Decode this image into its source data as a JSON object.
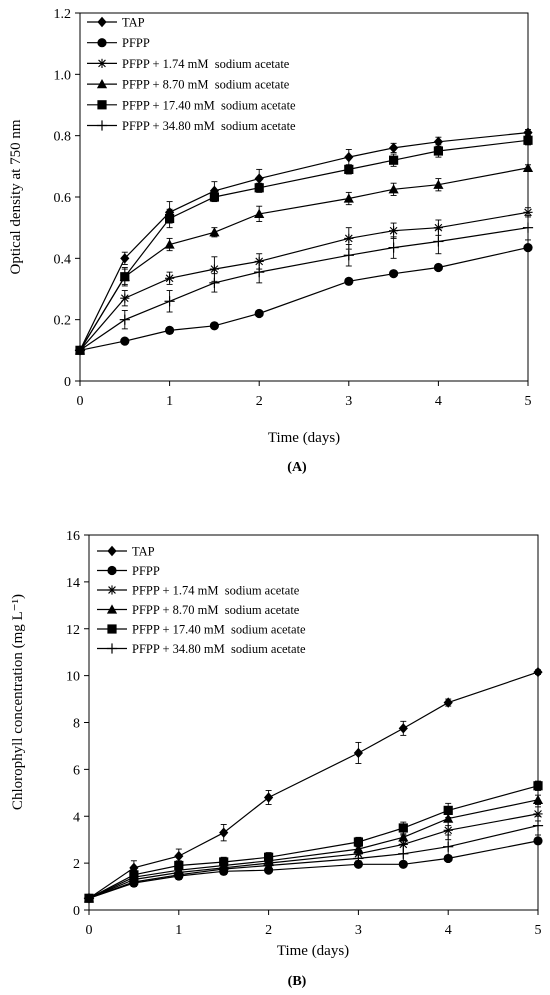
{
  "chart_data": [
    {
      "type": "line",
      "panel_label": "(A)",
      "xlabel": "Time (days)",
      "ylabel": "Optical density at 750 nm",
      "xlim": [
        0,
        5
      ],
      "ylim": [
        0,
        1.2
      ],
      "xticks": [
        "0",
        "1",
        "2",
        "3",
        "4",
        "5"
      ],
      "yticks": [
        "0",
        "0.2",
        "0.4",
        "0.6",
        "0.8",
        "1.0",
        "1.2"
      ],
      "x": [
        0,
        0.5,
        1,
        1.5,
        2,
        3,
        3.5,
        4,
        5
      ],
      "legend_position": "top-left",
      "series": [
        {
          "name": "TAP",
          "marker": "diamond",
          "values": [
            0.1,
            0.4,
            0.55,
            0.62,
            0.66,
            0.73,
            0.76,
            0.78,
            0.81
          ],
          "errors": [
            0,
            0.02,
            0.035,
            0.03,
            0.03,
            0.025,
            0.015,
            0.015,
            0.01
          ]
        },
        {
          "name": "PFPP",
          "marker": "circle",
          "values": [
            0.1,
            0.13,
            0.165,
            0.18,
            0.22,
            0.325,
            0.35,
            0.37,
            0.435
          ],
          "errors": [
            0,
            0,
            0,
            0,
            0,
            0,
            0,
            0,
            0
          ]
        },
        {
          "name": "PFPP + 1.74 mM  sodium acetate",
          "marker": "star",
          "values": [
            0.1,
            0.27,
            0.335,
            0.365,
            0.39,
            0.465,
            0.49,
            0.5,
            0.55
          ],
          "errors": [
            0,
            0.025,
            0.02,
            0.04,
            0.025,
            0.035,
            0.025,
            0.025,
            0.015
          ]
        },
        {
          "name": "PFPP + 8.70 mM  sodium acetate",
          "marker": "triangle",
          "values": [
            0.1,
            0.34,
            0.445,
            0.485,
            0.545,
            0.595,
            0.625,
            0.64,
            0.695
          ],
          "errors": [
            0,
            0.03,
            0.02,
            0.015,
            0.025,
            0.02,
            0.02,
            0.02,
            0.01
          ]
        },
        {
          "name": "PFPP + 17.40 mM  sodium acetate",
          "marker": "square",
          "values": [
            0.1,
            0.34,
            0.53,
            0.6,
            0.63,
            0.69,
            0.72,
            0.75,
            0.785
          ],
          "errors": [
            0,
            0.025,
            0.03,
            0.015,
            0.015,
            0.015,
            0.02,
            0.02,
            0.015
          ]
        },
        {
          "name": "PFPP + 34.80 mM  sodium acetate",
          "marker": "plus",
          "values": [
            0.1,
            0.2,
            0.26,
            0.32,
            0.355,
            0.41,
            0.435,
            0.455,
            0.5
          ],
          "errors": [
            0,
            0.03,
            0.035,
            0.03,
            0.035,
            0.035,
            0.035,
            0.04,
            0.04
          ]
        }
      ]
    },
    {
      "type": "line",
      "panel_label": "(B)",
      "xlabel": "Time (days)",
      "ylabel": "Chlorophyll concentration (mg L⁻¹)",
      "xlim": [
        0,
        5
      ],
      "ylim": [
        0,
        16
      ],
      "xticks": [
        "0",
        "1",
        "2",
        "3",
        "4",
        "5"
      ],
      "yticks": [
        "0",
        "2",
        "4",
        "6",
        "8",
        "10",
        "12",
        "14",
        "16"
      ],
      "x": [
        0,
        0.5,
        1,
        1.5,
        2,
        3,
        3.5,
        4,
        5
      ],
      "legend_position": "top-left",
      "series": [
        {
          "name": "TAP",
          "marker": "diamond",
          "values": [
            0.5,
            1.8,
            2.3,
            3.3,
            4.8,
            6.7,
            7.75,
            8.85,
            10.15
          ],
          "errors": [
            0,
            0.3,
            0.3,
            0.35,
            0.3,
            0.45,
            0.3,
            0.15,
            0.1
          ]
        },
        {
          "name": "PFPP",
          "marker": "circle",
          "values": [
            0.5,
            1.15,
            1.45,
            1.65,
            1.7,
            1.95,
            1.95,
            2.2,
            2.95
          ],
          "errors": [
            0,
            0,
            0,
            0,
            0,
            0,
            0,
            0,
            0
          ]
        },
        {
          "name": "PFPP + 1.74 mM  sodium acetate",
          "marker": "star",
          "values": [
            0.5,
            1.3,
            1.6,
            1.8,
            2.0,
            2.4,
            2.8,
            3.4,
            4.1
          ],
          "errors": [
            0,
            0.2,
            0.2,
            0.2,
            0.2,
            0.3,
            0.4,
            0.4,
            0.3
          ]
        },
        {
          "name": "PFPP + 8.70 mM  sodium acetate",
          "marker": "triangle",
          "values": [
            0.5,
            1.4,
            1.7,
            1.9,
            2.1,
            2.6,
            3.1,
            3.9,
            4.7
          ],
          "errors": [
            0,
            0.2,
            0.2,
            0.2,
            0.2,
            0.25,
            0.3,
            0.3,
            0.2
          ]
        },
        {
          "name": "PFPP + 17.40 mM  sodium acetate",
          "marker": "square",
          "values": [
            0.5,
            1.5,
            1.9,
            2.05,
            2.25,
            2.9,
            3.5,
            4.25,
            5.3
          ],
          "errors": [
            0,
            0.2,
            0.2,
            0.2,
            0.2,
            0.2,
            0.25,
            0.3,
            0.2
          ]
        },
        {
          "name": "PFPP + 34.80 mM  sodium acetate",
          "marker": "plus",
          "values": [
            0.5,
            1.2,
            1.5,
            1.75,
            1.9,
            2.2,
            2.4,
            2.7,
            3.6
          ],
          "errors": [
            0,
            0.2,
            0.2,
            0.2,
            0.3,
            0.3,
            0.4,
            0.5,
            0.4
          ]
        }
      ]
    }
  ]
}
